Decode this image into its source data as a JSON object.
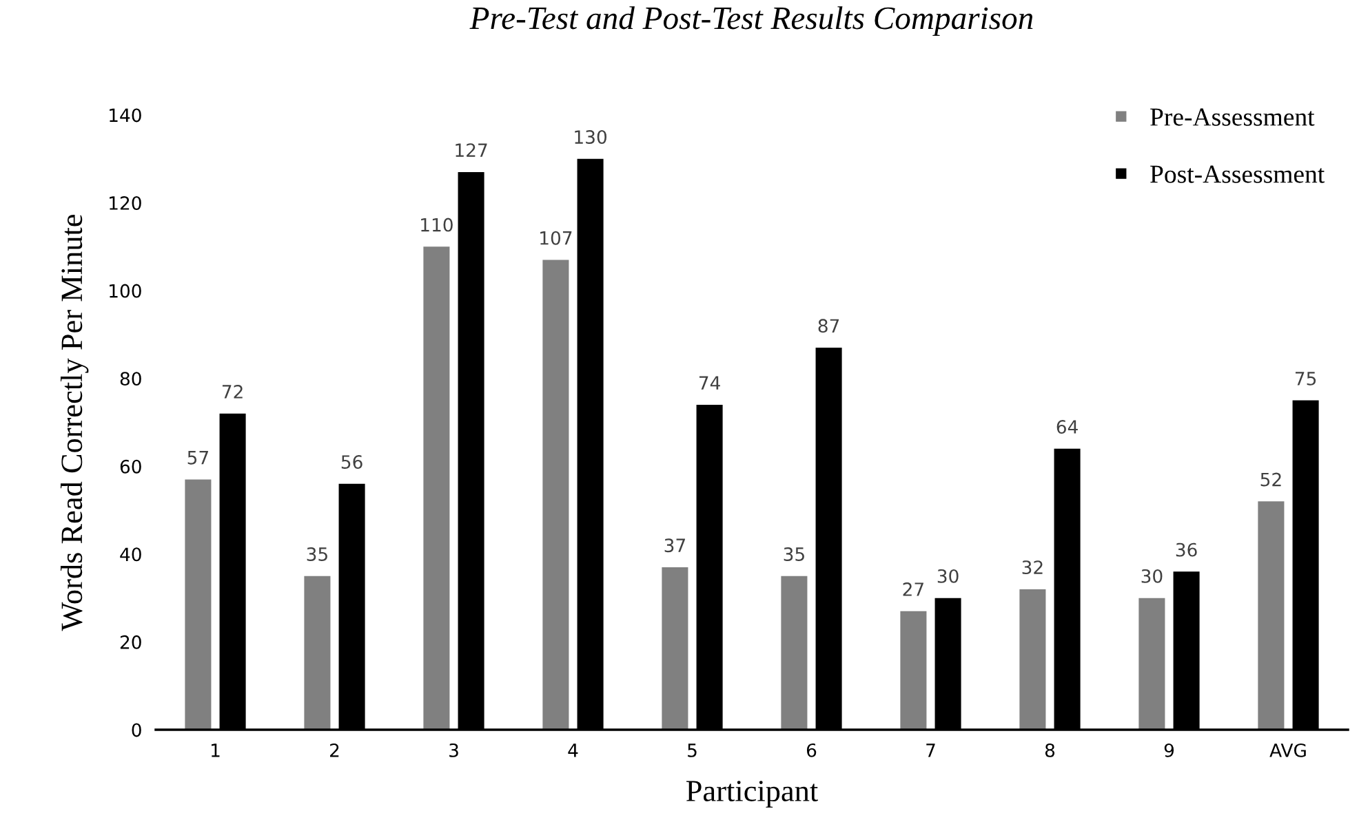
{
  "chart_data": {
    "type": "bar",
    "title": "Pre-Test and Post-Test Results Comparison",
    "xlabel": "Participant",
    "ylabel": "Words Read Correctly Per Minute",
    "categories": [
      "1",
      "2",
      "3",
      "4",
      "5",
      "6",
      "7",
      "8",
      "9",
      "AVG"
    ],
    "series": [
      {
        "name": "Pre-Assessment",
        "color": "#808080",
        "values": [
          57,
          35,
          110,
          107,
          37,
          35,
          27,
          32,
          30,
          52
        ]
      },
      {
        "name": "Post-Assessment",
        "color": "#000000",
        "values": [
          72,
          56,
          127,
          130,
          74,
          87,
          30,
          64,
          36,
          75
        ]
      }
    ],
    "ylim": [
      0,
      140
    ],
    "yticks": [
      0,
      20,
      40,
      60,
      80,
      100,
      120,
      140
    ],
    "data_labels": true,
    "legend": "top right",
    "grid": false
  }
}
